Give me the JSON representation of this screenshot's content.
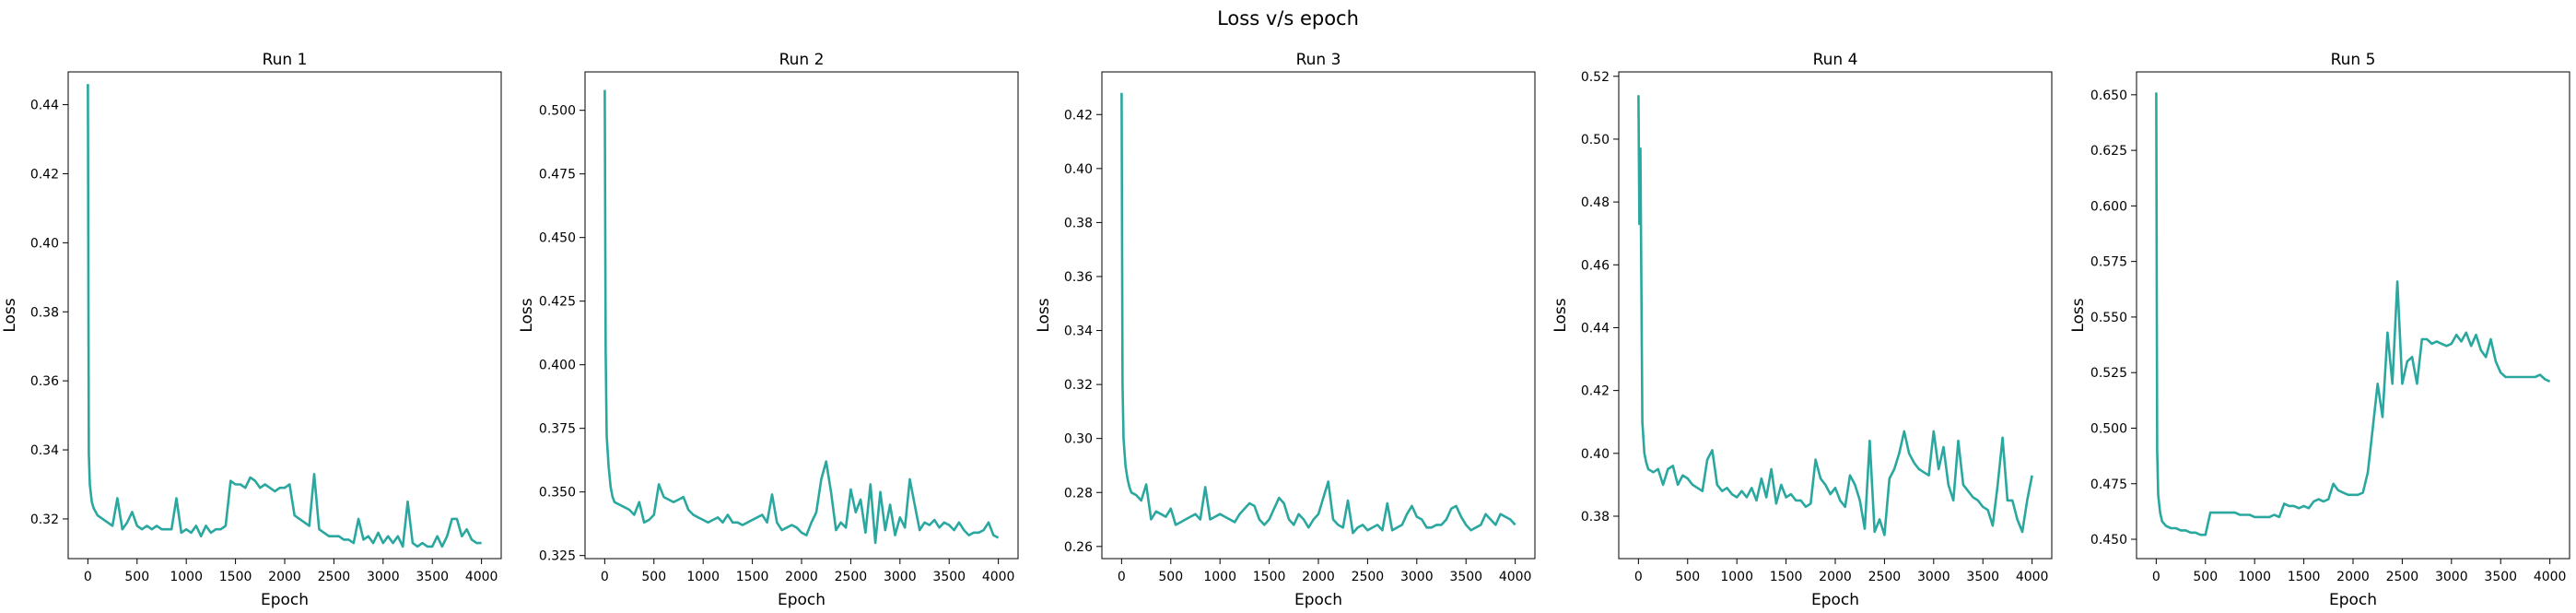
{
  "figure": {
    "title": "Loss v/s epoch",
    "line_color": "#2aa8a0"
  },
  "chart_data": [
    {
      "type": "line",
      "title": "Run 1",
      "xlabel": "Epoch",
      "ylabel": "Loss",
      "xlim": [
        -200,
        4200
      ],
      "ylim": [
        0.3085,
        0.4495
      ],
      "xticks": [
        0,
        500,
        1000,
        1500,
        2000,
        2500,
        3000,
        3500,
        4000
      ],
      "yticks": [
        0.32,
        0.34,
        0.36,
        0.38,
        0.4,
        0.42,
        0.44
      ],
      "ytick_labels": [
        "0.32",
        "0.34",
        "0.36",
        "0.38",
        "0.40",
        "0.42",
        "0.44"
      ],
      "grid": false,
      "series": [
        {
          "x": [
            0,
            10,
            20,
            40,
            60,
            80,
            100,
            150,
            200,
            250,
            300,
            350,
            400,
            450,
            500,
            550,
            600,
            650,
            700,
            750,
            800,
            850,
            900,
            950,
            1000,
            1050,
            1100,
            1150,
            1200,
            1250,
            1300,
            1350,
            1400,
            1450,
            1500,
            1550,
            1600,
            1650,
            1700,
            1750,
            1800,
            1850,
            1900,
            1950,
            2000,
            2050,
            2100,
            2150,
            2200,
            2250,
            2300,
            2350,
            2400,
            2450,
            2500,
            2550,
            2600,
            2650,
            2700,
            2750,
            2800,
            2850,
            2900,
            2950,
            3000,
            3050,
            3100,
            3150,
            3200,
            3250,
            3300,
            3350,
            3400,
            3450,
            3500,
            3550,
            3600,
            3650,
            3700,
            3750,
            3800,
            3850,
            3900,
            3950,
            4000
          ],
          "y": [
            0.446,
            0.339,
            0.33,
            0.325,
            0.323,
            0.322,
            0.321,
            0.32,
            0.319,
            0.318,
            0.326,
            0.317,
            0.319,
            0.322,
            0.318,
            0.317,
            0.318,
            0.317,
            0.318,
            0.317,
            0.317,
            0.317,
            0.326,
            0.316,
            0.317,
            0.316,
            0.318,
            0.315,
            0.318,
            0.316,
            0.317,
            0.317,
            0.318,
            0.331,
            0.33,
            0.33,
            0.329,
            0.332,
            0.331,
            0.329,
            0.33,
            0.329,
            0.328,
            0.329,
            0.329,
            0.33,
            0.321,
            0.32,
            0.319,
            0.318,
            0.333,
            0.317,
            0.316,
            0.315,
            0.315,
            0.315,
            0.314,
            0.314,
            0.313,
            0.32,
            0.314,
            0.315,
            0.313,
            0.316,
            0.313,
            0.315,
            0.313,
            0.315,
            0.312,
            0.325,
            0.313,
            0.312,
            0.313,
            0.312,
            0.312,
            0.315,
            0.312,
            0.315,
            0.32,
            0.32,
            0.315,
            0.317,
            0.314,
            0.313,
            0.313
          ]
        }
      ]
    },
    {
      "type": "line",
      "title": "Run 2",
      "xlabel": "Epoch",
      "ylabel": "Loss",
      "xlim": [
        -200,
        4200
      ],
      "ylim": [
        0.3238,
        0.5151
      ],
      "xticks": [
        0,
        500,
        1000,
        1500,
        2000,
        2500,
        3000,
        3500,
        4000
      ],
      "yticks": [
        0.325,
        0.35,
        0.375,
        0.4,
        0.425,
        0.45,
        0.475,
        0.5
      ],
      "ytick_labels": [
        "0.325",
        "0.350",
        "0.375",
        "0.400",
        "0.425",
        "0.450",
        "0.475",
        "0.500"
      ],
      "grid": false,
      "series": [
        {
          "x": [
            0,
            10,
            20,
            40,
            60,
            80,
            100,
            150,
            200,
            250,
            300,
            350,
            400,
            450,
            500,
            550,
            600,
            650,
            700,
            750,
            800,
            850,
            900,
            950,
            1000,
            1050,
            1100,
            1150,
            1200,
            1250,
            1300,
            1350,
            1400,
            1450,
            1500,
            1550,
            1600,
            1650,
            1700,
            1750,
            1800,
            1850,
            1900,
            1950,
            2000,
            2050,
            2100,
            2150,
            2200,
            2250,
            2300,
            2350,
            2400,
            2450,
            2500,
            2550,
            2600,
            2650,
            2700,
            2750,
            2800,
            2850,
            2900,
            2950,
            3000,
            3050,
            3100,
            3150,
            3200,
            3250,
            3300,
            3350,
            3400,
            3450,
            3500,
            3550,
            3600,
            3650,
            3700,
            3750,
            3800,
            3850,
            3900,
            3950,
            4000
          ],
          "y": [
            0.508,
            0.405,
            0.372,
            0.36,
            0.352,
            0.348,
            0.346,
            0.345,
            0.344,
            0.343,
            0.341,
            0.346,
            0.338,
            0.339,
            0.341,
            0.353,
            0.348,
            0.347,
            0.346,
            0.347,
            0.348,
            0.343,
            0.341,
            0.34,
            0.339,
            0.338,
            0.339,
            0.34,
            0.338,
            0.341,
            0.338,
            0.338,
            0.337,
            0.338,
            0.339,
            0.34,
            0.341,
            0.338,
            0.349,
            0.338,
            0.335,
            0.336,
            0.337,
            0.336,
            0.334,
            0.333,
            0.338,
            0.342,
            0.355,
            0.362,
            0.35,
            0.335,
            0.338,
            0.336,
            0.351,
            0.342,
            0.347,
            0.334,
            0.353,
            0.33,
            0.35,
            0.335,
            0.345,
            0.333,
            0.34,
            0.336,
            0.355,
            0.345,
            0.335,
            0.338,
            0.337,
            0.339,
            0.336,
            0.338,
            0.337,
            0.335,
            0.338,
            0.335,
            0.333,
            0.334,
            0.334,
            0.335,
            0.338,
            0.333,
            0.332
          ]
        }
      ]
    },
    {
      "type": "line",
      "title": "Run 3",
      "xlabel": "Epoch",
      "ylabel": "Loss",
      "xlim": [
        -200,
        4200
      ],
      "ylim": [
        0.2555,
        0.4358
      ],
      "xticks": [
        0,
        500,
        1000,
        1500,
        2000,
        2500,
        3000,
        3500,
        4000
      ],
      "yticks": [
        0.26,
        0.28,
        0.3,
        0.32,
        0.34,
        0.36,
        0.38,
        0.4,
        0.42
      ],
      "ytick_labels": [
        "0.26",
        "0.28",
        "0.30",
        "0.32",
        "0.34",
        "0.36",
        "0.38",
        "0.40",
        "0.42"
      ],
      "grid": false,
      "series": [
        {
          "x": [
            0,
            10,
            20,
            40,
            60,
            80,
            100,
            150,
            200,
            250,
            300,
            350,
            400,
            450,
            500,
            550,
            600,
            650,
            700,
            750,
            800,
            850,
            900,
            950,
            1000,
            1050,
            1100,
            1150,
            1200,
            1250,
            1300,
            1350,
            1400,
            1450,
            1500,
            1550,
            1600,
            1650,
            1700,
            1750,
            1800,
            1850,
            1900,
            1950,
            2000,
            2050,
            2100,
            2150,
            2200,
            2250,
            2300,
            2350,
            2400,
            2450,
            2500,
            2550,
            2600,
            2650,
            2700,
            2750,
            2800,
            2850,
            2900,
            2950,
            3000,
            3050,
            3100,
            3150,
            3200,
            3250,
            3300,
            3350,
            3400,
            3450,
            3500,
            3550,
            3600,
            3650,
            3700,
            3750,
            3800,
            3850,
            3900,
            3950,
            4000
          ],
          "y": [
            0.428,
            0.32,
            0.3,
            0.29,
            0.285,
            0.282,
            0.28,
            0.279,
            0.277,
            0.283,
            0.27,
            0.273,
            0.272,
            0.271,
            0.274,
            0.268,
            0.269,
            0.27,
            0.271,
            0.272,
            0.27,
            0.282,
            0.27,
            0.271,
            0.272,
            0.271,
            0.27,
            0.269,
            0.272,
            0.274,
            0.276,
            0.275,
            0.27,
            0.268,
            0.27,
            0.274,
            0.278,
            0.276,
            0.27,
            0.268,
            0.272,
            0.27,
            0.267,
            0.27,
            0.272,
            0.278,
            0.284,
            0.27,
            0.268,
            0.267,
            0.277,
            0.265,
            0.267,
            0.268,
            0.266,
            0.267,
            0.268,
            0.266,
            0.276,
            0.266,
            0.267,
            0.268,
            0.272,
            0.275,
            0.271,
            0.27,
            0.267,
            0.267,
            0.268,
            0.268,
            0.27,
            0.274,
            0.275,
            0.271,
            0.268,
            0.266,
            0.267,
            0.268,
            0.272,
            0.27,
            0.268,
            0.272,
            0.271,
            0.27,
            0.268
          ]
        }
      ]
    },
    {
      "type": "line",
      "title": "Run 4",
      "xlabel": "Epoch",
      "ylabel": "Loss",
      "xlim": [
        -200,
        4200
      ],
      "ylim": [
        0.3665,
        0.5214
      ],
      "xticks": [
        0,
        500,
        1000,
        1500,
        2000,
        2500,
        3000,
        3500,
        4000
      ],
      "yticks": [
        0.38,
        0.4,
        0.42,
        0.44,
        0.46,
        0.48,
        0.5,
        0.52
      ],
      "ytick_labels": [
        "0.38",
        "0.40",
        "0.42",
        "0.44",
        "0.46",
        "0.48",
        "0.50",
        "0.52"
      ],
      "grid": false,
      "series": [
        {
          "x": [
            0,
            10,
            20,
            40,
            60,
            80,
            100,
            150,
            200,
            250,
            300,
            350,
            400,
            450,
            500,
            550,
            600,
            650,
            700,
            750,
            800,
            850,
            900,
            950,
            1000,
            1050,
            1100,
            1150,
            1200,
            1250,
            1300,
            1350,
            1400,
            1450,
            1500,
            1550,
            1600,
            1650,
            1700,
            1750,
            1800,
            1850,
            1900,
            1950,
            2000,
            2050,
            2100,
            2150,
            2200,
            2250,
            2300,
            2350,
            2400,
            2450,
            2500,
            2550,
            2600,
            2650,
            2700,
            2750,
            2800,
            2850,
            2900,
            2950,
            3000,
            3050,
            3100,
            3150,
            3200,
            3250,
            3300,
            3350,
            3400,
            3450,
            3500,
            3550,
            3600,
            3650,
            3700,
            3750,
            3800,
            3850,
            3900,
            3950,
            4000
          ],
          "y": [
            0.514,
            0.473,
            0.497,
            0.41,
            0.4,
            0.397,
            0.395,
            0.394,
            0.395,
            0.39,
            0.395,
            0.396,
            0.39,
            0.393,
            0.392,
            0.39,
            0.389,
            0.388,
            0.398,
            0.401,
            0.39,
            0.388,
            0.389,
            0.387,
            0.386,
            0.388,
            0.386,
            0.389,
            0.385,
            0.392,
            0.386,
            0.395,
            0.384,
            0.39,
            0.386,
            0.387,
            0.385,
            0.385,
            0.383,
            0.384,
            0.398,
            0.392,
            0.39,
            0.387,
            0.389,
            0.385,
            0.383,
            0.393,
            0.39,
            0.385,
            0.376,
            0.404,
            0.375,
            0.379,
            0.374,
            0.392,
            0.395,
            0.4,
            0.407,
            0.4,
            0.397,
            0.395,
            0.394,
            0.393,
            0.407,
            0.395,
            0.402,
            0.39,
            0.385,
            0.404,
            0.39,
            0.388,
            0.386,
            0.385,
            0.383,
            0.382,
            0.377,
            0.39,
            0.405,
            0.385,
            0.385,
            0.379,
            0.375,
            0.385,
            0.393
          ]
        }
      ]
    },
    {
      "type": "line",
      "title": "Run 5",
      "xlabel": "Epoch",
      "ylabel": "Loss",
      "xlim": [
        -200,
        4200
      ],
      "ylim": [
        0.4413,
        0.6603
      ],
      "xticks": [
        0,
        500,
        1000,
        1500,
        2000,
        2500,
        3000,
        3500,
        4000
      ],
      "yticks": [
        0.45,
        0.475,
        0.5,
        0.525,
        0.55,
        0.575,
        0.6,
        0.625,
        0.65
      ],
      "ytick_labels": [
        "0.450",
        "0.475",
        "0.500",
        "0.525",
        "0.550",
        "0.575",
        "0.600",
        "0.625",
        "0.650"
      ],
      "grid": false,
      "series": [
        {
          "x": [
            0,
            10,
            20,
            40,
            60,
            80,
            100,
            150,
            200,
            250,
            300,
            350,
            400,
            450,
            500,
            550,
            600,
            650,
            700,
            750,
            800,
            850,
            900,
            950,
            1000,
            1050,
            1100,
            1150,
            1200,
            1250,
            1300,
            1350,
            1400,
            1450,
            1500,
            1550,
            1600,
            1650,
            1700,
            1750,
            1800,
            1850,
            1900,
            1950,
            2000,
            2050,
            2100,
            2150,
            2200,
            2250,
            2300,
            2350,
            2400,
            2450,
            2500,
            2550,
            2600,
            2650,
            2700,
            2750,
            2800,
            2850,
            2900,
            2950,
            3000,
            3050,
            3100,
            3150,
            3200,
            3250,
            3300,
            3350,
            3400,
            3450,
            3500,
            3550,
            3600,
            3650,
            3700,
            3750,
            3800,
            3850,
            3900,
            3950,
            4000
          ],
          "y": [
            0.651,
            0.49,
            0.47,
            0.462,
            0.458,
            0.457,
            0.456,
            0.455,
            0.455,
            0.454,
            0.454,
            0.453,
            0.453,
            0.452,
            0.452,
            0.462,
            0.462,
            0.462,
            0.462,
            0.462,
            0.462,
            0.461,
            0.461,
            0.461,
            0.46,
            0.46,
            0.46,
            0.46,
            0.461,
            0.46,
            0.466,
            0.465,
            0.465,
            0.464,
            0.465,
            0.464,
            0.467,
            0.468,
            0.467,
            0.468,
            0.475,
            0.472,
            0.471,
            0.47,
            0.47,
            0.47,
            0.471,
            0.48,
            0.5,
            0.52,
            0.505,
            0.543,
            0.52,
            0.566,
            0.52,
            0.53,
            0.532,
            0.52,
            0.54,
            0.54,
            0.538,
            0.539,
            0.538,
            0.537,
            0.538,
            0.542,
            0.539,
            0.543,
            0.537,
            0.542,
            0.535,
            0.532,
            0.54,
            0.53,
            0.525,
            0.523,
            0.523,
            0.523,
            0.523,
            0.523,
            0.523,
            0.523,
            0.524,
            0.522,
            0.521
          ]
        }
      ]
    }
  ]
}
